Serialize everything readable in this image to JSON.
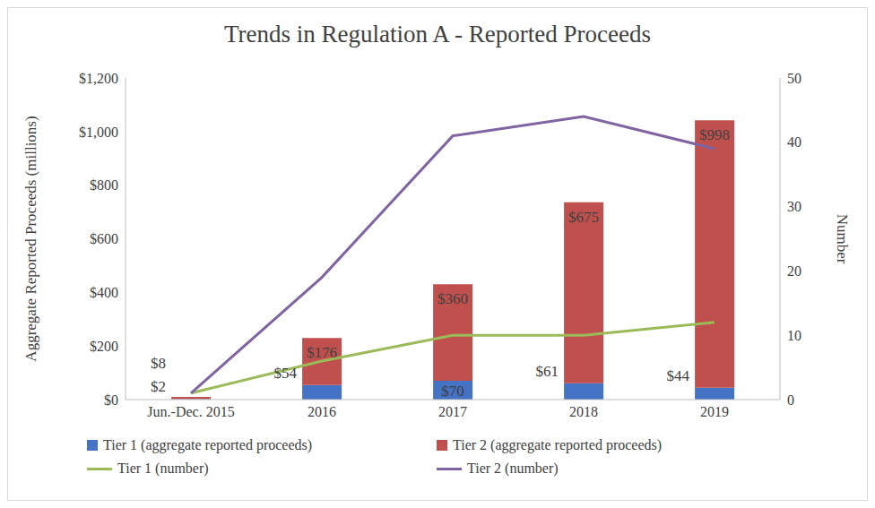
{
  "chart_data": {
    "type": "bar",
    "title": "Trends in Regulation A - Reported Proceeds",
    "y_label": "Aggregate Reported Proceeds (millions)",
    "y2_label": "Number",
    "categories": [
      "Jun.-Dec. 2015",
      "2016",
      "2017",
      "2018",
      "2019"
    ],
    "stacked": true,
    "grid": false,
    "legend": "bottom",
    "ylim": [
      0,
      1200
    ],
    "yticks": [
      {
        "value": 0,
        "label": "$0"
      },
      {
        "value": 200,
        "label": "$200"
      },
      {
        "value": 400,
        "label": "$400"
      },
      {
        "value": 600,
        "label": "$600"
      },
      {
        "value": 800,
        "label": "$800"
      },
      {
        "value": 1000,
        "label": "$1,000"
      },
      {
        "value": 1200,
        "label": "$1,200"
      }
    ],
    "y2lim": [
      0,
      50
    ],
    "y2ticks": [
      0,
      10,
      20,
      30,
      40,
      50
    ],
    "series": [
      {
        "name": "Tier 1 (aggregate reported proceeds)",
        "type": "bar",
        "color": "#4472c4",
        "data_labels": true,
        "values": [
          2,
          54,
          70,
          61,
          44
        ],
        "value_labels": [
          "$2",
          "$54",
          "$70",
          "$61",
          "$44"
        ]
      },
      {
        "name": "Tier 2 (aggregate reported proceeds)",
        "type": "bar",
        "color": "#c0504d",
        "data_labels": true,
        "values": [
          8,
          176,
          360,
          675,
          998
        ],
        "value_labels": [
          "$8",
          "$176",
          "$360",
          "$675",
          "$998"
        ]
      },
      {
        "name": "Tier 1 (number)",
        "type": "line",
        "axis": "y2",
        "color": "#9bbb59",
        "marker": "none",
        "line_style": "solid",
        "data_labels": false,
        "values": [
          1,
          6,
          10,
          10,
          12
        ]
      },
      {
        "name": "Tier 2 (number)",
        "type": "line",
        "axis": "y2",
        "color": "#8064a2",
        "marker": "none",
        "line_style": "solid",
        "data_labels": false,
        "values": [
          1,
          19,
          41,
          44,
          39
        ]
      }
    ]
  }
}
